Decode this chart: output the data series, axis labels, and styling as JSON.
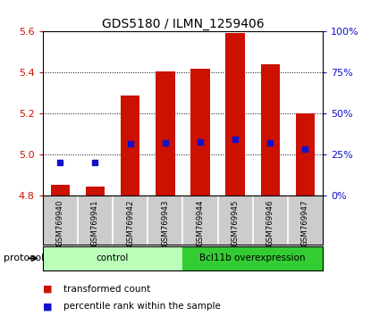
{
  "title": "GDS5180 / ILMN_1259406",
  "samples": [
    "GSM769940",
    "GSM769941",
    "GSM769942",
    "GSM769943",
    "GSM769944",
    "GSM769945",
    "GSM769946",
    "GSM769947"
  ],
  "bar_tops": [
    4.855,
    4.845,
    5.29,
    5.405,
    5.42,
    5.595,
    5.44,
    5.2
  ],
  "bar_bottom": 4.8,
  "percentile_values": [
    4.965,
    4.962,
    5.055,
    5.06,
    5.065,
    5.075,
    5.058,
    5.03
  ],
  "bar_color": "#cc1100",
  "percentile_color": "#1111cc",
  "ylim": [
    4.8,
    5.6
  ],
  "ylim_right": [
    0,
    100
  ],
  "yticks_left": [
    4.8,
    5.0,
    5.2,
    5.4,
    5.6
  ],
  "yticks_right": [
    0,
    25,
    50,
    75,
    100
  ],
  "groups": [
    {
      "label": "control",
      "span": [
        0,
        3
      ],
      "color": "#bbffbb"
    },
    {
      "label": "Bcl11b overexpression",
      "span": [
        4,
        7
      ],
      "color": "#33cc33"
    }
  ],
  "group_label": "protocol",
  "legend_items": [
    {
      "label": "transformed count",
      "color": "#cc1100"
    },
    {
      "label": "percentile rank within the sample",
      "color": "#1111cc"
    }
  ],
  "bar_width": 0.55,
  "background_color": "#ffffff",
  "tick_label_color_left": "#cc1100",
  "tick_label_color_right": "#1111cc",
  "sample_box_color": "#cccccc",
  "title_fontsize": 10,
  "axis_fontsize": 8,
  "legend_fontsize": 7.5
}
